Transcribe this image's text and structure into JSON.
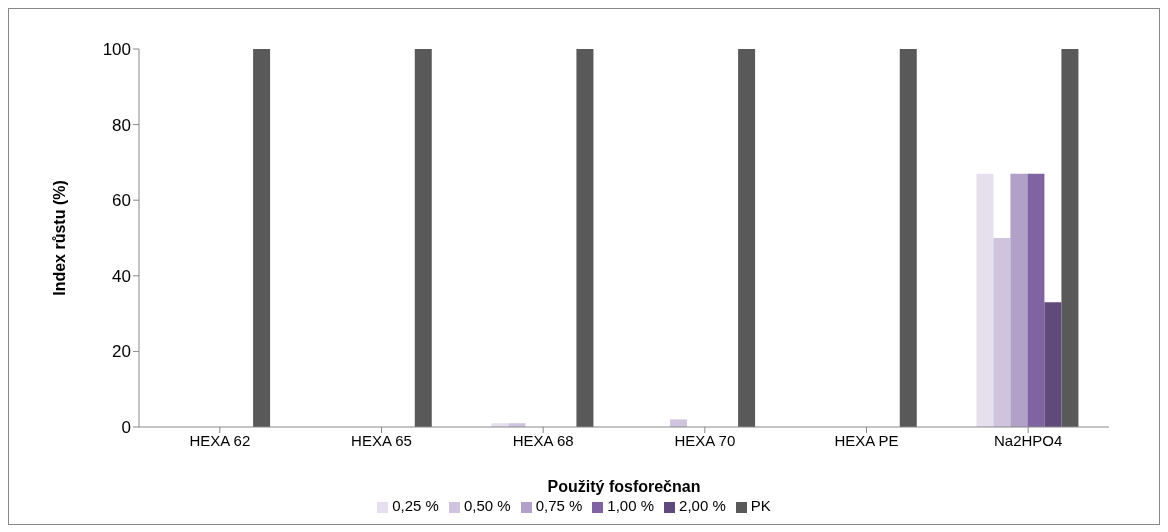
{
  "chart_data": {
    "type": "bar",
    "xlabel": "Použitý fosforečnan",
    "ylabel": "Index  růstu (%)",
    "categories": [
      "HEXA 62",
      "HEXA 65",
      "HEXA 68",
      "HEXA 70",
      "HEXA PE",
      "Na2HPO4"
    ],
    "series": [
      {
        "name": "0,25 %",
        "color": "#e6e0ee",
        "values": [
          0,
          0,
          1,
          0,
          0,
          67
        ]
      },
      {
        "name": "0,50 %",
        "color": "#cfc3dd",
        "values": [
          0,
          0,
          1,
          2,
          0,
          50
        ]
      },
      {
        "name": "0,75 %",
        "color": "#b1a0c7",
        "values": [
          0,
          0,
          0,
          0,
          0,
          67
        ]
      },
      {
        "name": "1,00 %",
        "color": "#8064a2",
        "values": [
          0,
          0,
          0,
          0,
          0,
          67
        ]
      },
      {
        "name": "2,00 %",
        "color": "#604a7b",
        "values": [
          0,
          0,
          0,
          0,
          0,
          33
        ]
      },
      {
        "name": "PK",
        "color": "#595959",
        "values": [
          100,
          100,
          100,
          100,
          100,
          100
        ]
      }
    ],
    "ylim": [
      0,
      100
    ],
    "yticks": [
      0,
      20,
      40,
      60,
      80,
      100
    ],
    "grid": false,
    "legend": "bottom"
  }
}
